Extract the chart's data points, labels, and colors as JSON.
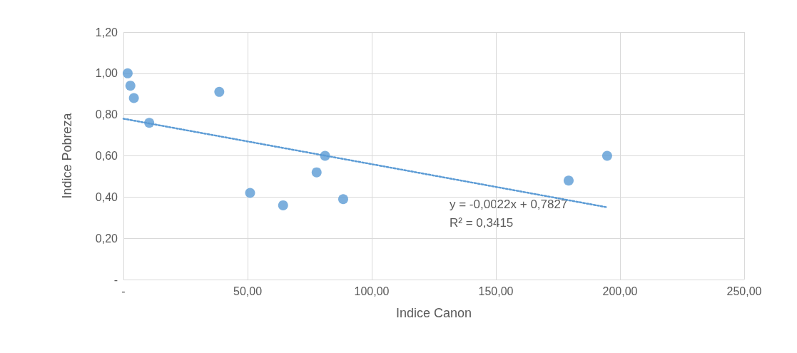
{
  "chart_data": {
    "type": "scatter",
    "xlabel": "Indice Canon",
    "ylabel": "Indice Pobreza",
    "x": [
      1.7,
      2.8,
      4.2,
      10.4,
      38.6,
      51.0,
      64.3,
      77.8,
      81.2,
      88.5,
      179.3,
      194.8
    ],
    "series": [
      {
        "color": "#5b9bd5",
        "marker": "circle",
        "values": [
          1.0,
          0.94,
          0.88,
          0.76,
          0.91,
          0.42,
          0.36,
          0.52,
          0.6,
          0.39,
          0.48,
          0.6
        ]
      },
      {
        "type": "line",
        "color": "#5b9bd5",
        "marker": "none",
        "line_style": "dotted",
        "x": [
          0,
          195
        ],
        "values": [
          0.78,
          0.35
        ]
      }
    ],
    "xlim": [
      0,
      250
    ],
    "xticks": [
      {
        "value": 0,
        "label": "-"
      },
      {
        "value": 50,
        "label": "50,00"
      },
      {
        "value": 100,
        "label": "100,00"
      },
      {
        "value": 150,
        "label": "150,00"
      },
      {
        "value": 200,
        "label": "200,00"
      },
      {
        "value": 250,
        "label": "250,00"
      }
    ],
    "ylim": [
      0,
      1.2
    ],
    "yticks": [
      {
        "value": 0,
        "label": "-"
      },
      {
        "value": 0.2,
        "label": "0,20"
      },
      {
        "value": 0.4,
        "label": "0,40"
      },
      {
        "value": 0.6,
        "label": "0,60"
      },
      {
        "value": 0.8,
        "label": "0,80"
      },
      {
        "value": 1.0,
        "label": "1,00"
      },
      {
        "value": 1.2,
        "label": "1,20"
      }
    ],
    "grid": true,
    "annotations": [
      "y = -0,0022x + 0,7827",
      "R² = 0,3415"
    ]
  }
}
